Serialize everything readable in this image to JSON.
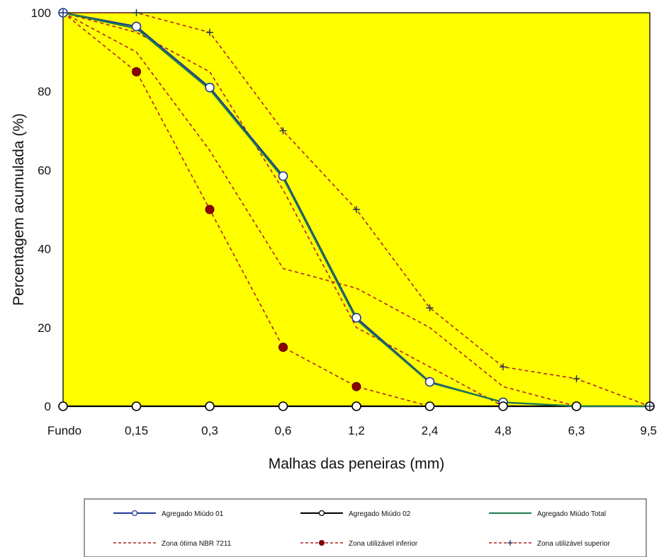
{
  "chart_data": {
    "type": "line",
    "xlabel": "Malhas das peneiras (mm)",
    "ylabel": "Percentagem acumulada (%)",
    "categories": [
      "Fundo",
      "0,15",
      "0,3",
      "0,6",
      "1,2",
      "2,4",
      "4,8",
      "6,3",
      "9,5"
    ],
    "ylim": [
      0,
      100
    ],
    "yticks": [
      "0",
      "20",
      "40",
      "60",
      "80",
      "100"
    ],
    "plot_background": "#ffff00",
    "grid": false,
    "legend_position": "bottom",
    "series": [
      {
        "name": "Agregado Miúdo 01",
        "color": "#1f3a93",
        "style": "solid",
        "marker": "open-circle",
        "values": [
          100,
          96.5,
          81,
          58.5,
          22.5,
          6.2,
          1,
          0,
          0
        ]
      },
      {
        "name": "Agregado Miúdo 02",
        "color": "#000000",
        "style": "solid",
        "marker": "open-circle",
        "values": [
          0,
          0,
          0,
          0,
          0,
          0,
          0,
          0,
          0
        ]
      },
      {
        "name": "Agregado Miúdo Total",
        "color": "#1e7a4a",
        "style": "solid",
        "marker": "none",
        "values": [
          100,
          96,
          80.5,
          58,
          22,
          6,
          1,
          0,
          0
        ]
      },
      {
        "name": "Zona ótima NBR 7211",
        "color": "#b22222",
        "style": "dashed",
        "marker": "none",
        "values": [
          100,
          95,
          85,
          55,
          20,
          10,
          0,
          0,
          0
        ]
      },
      {
        "name": "Zona ótima NBR 7211",
        "color": "#b22222",
        "style": "dashed",
        "marker": "none",
        "values": [
          100,
          90,
          65,
          35,
          30,
          20,
          5,
          0,
          0
        ]
      },
      {
        "name": "Zona utilizável inferior",
        "color": "#b22222",
        "style": "dashed",
        "marker": "filled-circle",
        "values": [
          100,
          85,
          50,
          15,
          5,
          0,
          0,
          0,
          0
        ]
      },
      {
        "name": "Zona utilizável superior",
        "color": "#b22222",
        "style": "dashed",
        "marker": "plus",
        "values": [
          100,
          100,
          95,
          70,
          50,
          25,
          10,
          7,
          0
        ]
      }
    ],
    "legend": [
      {
        "label": "Agregado Miúdo 01",
        "color": "#1f3a93",
        "style": "solid",
        "marker": "open-circle"
      },
      {
        "label": "Agregado Miúdo 02",
        "color": "#000000",
        "style": "solid",
        "marker": "open-circle"
      },
      {
        "label": "Agregado Miúdo Total",
        "color": "#1e7a4a",
        "style": "solid",
        "marker": "none"
      },
      {
        "label": "Zona ótima NBR 7211",
        "color": "#b22222",
        "style": "dashed",
        "marker": "none"
      },
      {
        "label": "Zona utilizável inferior",
        "color": "#b22222",
        "style": "dashed",
        "marker": "filled-circle"
      },
      {
        "label": "Zona utilizável superior",
        "color": "#b22222",
        "style": "dashed",
        "marker": "plus"
      }
    ]
  }
}
